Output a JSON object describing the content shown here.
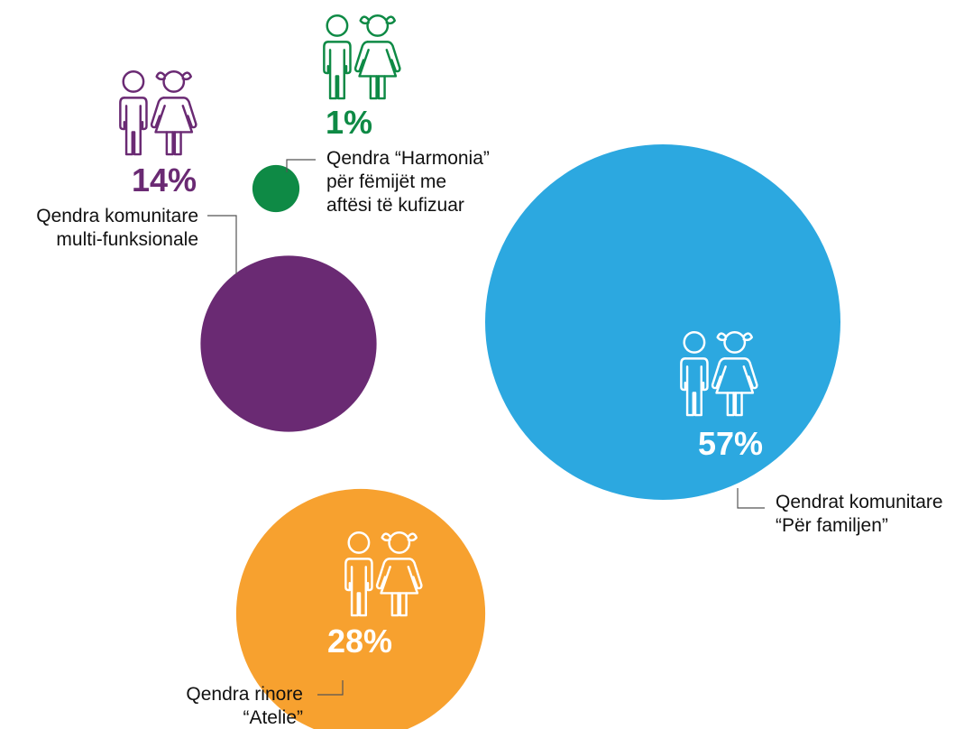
{
  "chart_data": {
    "type": "bubble",
    "title": "",
    "series": [
      {
        "name": "Qendrat komunitare “Për familjen”",
        "label_lines": [
          "Qendrat komunitare",
          "“Për familjen”"
        ],
        "value": 57,
        "value_label": "57%",
        "color": "#2CA8E0",
        "text_color": "#ffffff"
      },
      {
        "name": "Qendra rinore “Atelie”",
        "label_lines": [
          "Qendra rinore",
          "“Atelie”"
        ],
        "value": 28,
        "value_label": "28%",
        "color": "#F7A12F",
        "text_color": "#ffffff"
      },
      {
        "name": "Qendra komunitare multi-funksionale",
        "label_lines": [
          "Qendra komunitare",
          "multi-funksionale"
        ],
        "value": 14,
        "value_label": "14%",
        "color": "#6A2A73",
        "text_color": "#6A2A73"
      },
      {
        "name": "Qendra “Harmonia” për fëmijët me aftësi të kufizuar",
        "label_lines": [
          "Qendra “Harmonia”",
          "për fëmijët me",
          "aftësi të kufizuar"
        ],
        "value": 1,
        "value_label": "1%",
        "color": "#0E8A45",
        "text_color": "#0E8A45"
      }
    ],
    "icon": "boy-and-girl-icon",
    "grid": false,
    "legend": "none"
  }
}
